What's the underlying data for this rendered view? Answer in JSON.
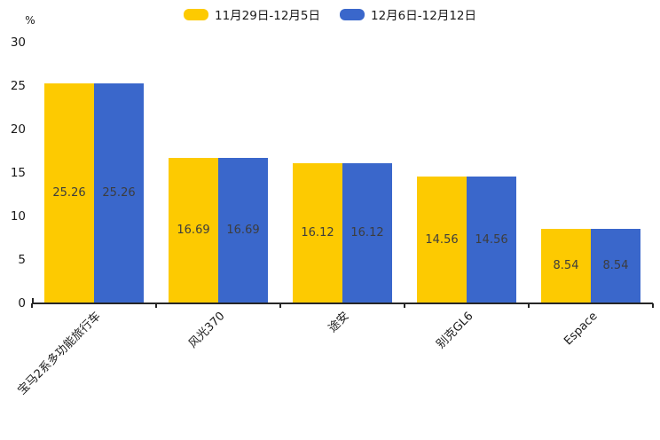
{
  "chart_data": {
    "type": "bar",
    "title": "",
    "xlabel": "",
    "ylabel": "%",
    "categories": [
      "宝马2系多功能旅行车",
      "风光370",
      "途安",
      "别克GL6",
      "Espace"
    ],
    "series": [
      {
        "name": "11月29日-12月5日",
        "color": "#FDCA01",
        "values": [
          25.26,
          16.69,
          16.12,
          14.56,
          8.54
        ]
      },
      {
        "name": "12月6日-12月12日",
        "color": "#3A67CB",
        "values": [
          25.26,
          16.69,
          16.12,
          14.56,
          8.54
        ]
      }
    ],
    "yticks": [
      0,
      5,
      10,
      15,
      20,
      25,
      30
    ],
    "ylim": [
      0,
      30
    ],
    "grid": false,
    "legend_position": "top-center",
    "value_labels": "centered-inside-bars",
    "xtick_label_rotation_deg": 45,
    "axis_color": "#262626",
    "value_label_color": "#3d3d3d"
  }
}
